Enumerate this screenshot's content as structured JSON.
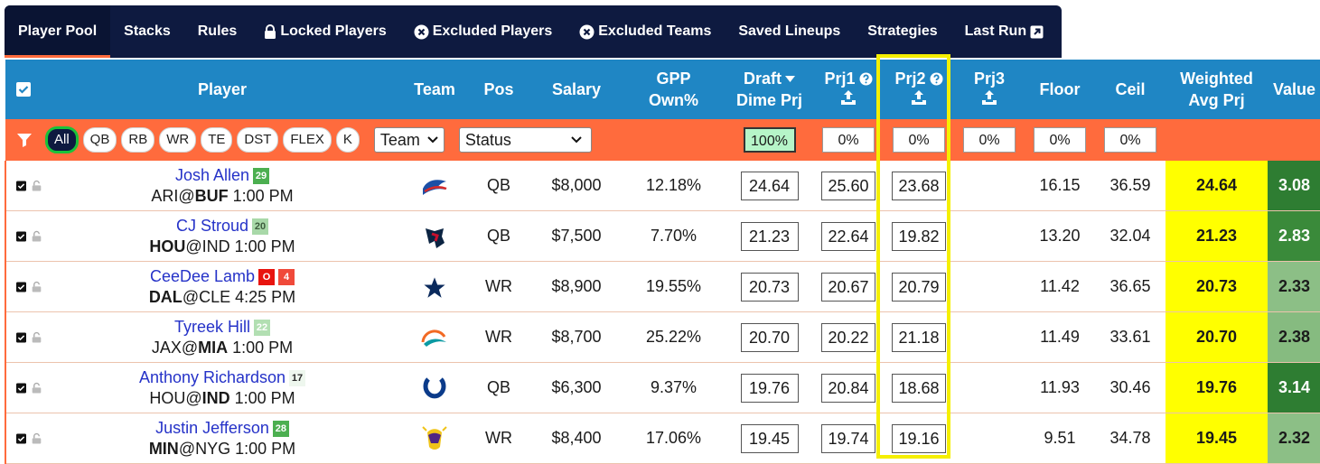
{
  "tabs": [
    "Player Pool",
    "Stacks",
    "Rules",
    "Locked Players",
    "Excluded Players",
    "Excluded Teams",
    "Saved Lineups",
    "Strategies",
    "Last Run"
  ],
  "table": {
    "headers": {
      "player": "Player",
      "team": "Team",
      "pos": "Pos",
      "salary": "Salary",
      "own": "GPP Own%",
      "draft": {
        "line1": "Draft",
        "line2": "Dime Prj"
      },
      "prj1": "Prj1",
      "prj2": "Prj2",
      "prj3": "Prj3",
      "floor": "Floor",
      "ceil": "Ceil",
      "weighted": "Weighted Avg Prj",
      "value": "Value"
    },
    "filters": {
      "positions": [
        "All",
        "QB",
        "RB",
        "WR",
        "TE",
        "DST",
        "FLEX",
        "K"
      ],
      "team_select": "Team",
      "status_select": "Status",
      "draft": "100%",
      "prj1": "0%",
      "prj2": "0%",
      "prj3": "0%",
      "floor": "0%",
      "ceil": "0%"
    },
    "rows": [
      {
        "name": "Josh Allen",
        "badges": [
          {
            "text": "29",
            "bg": "#4caf50",
            "fg": "#ffffff"
          }
        ],
        "away": "ARI",
        "at": "@",
        "home": "BUF",
        "time": "1:00 PM",
        "bold": "home",
        "pos": "QB",
        "salary": "$8,000",
        "own": "12.18%",
        "draft": "24.64",
        "prj1": "25.60",
        "prj2": "23.68",
        "floor": "16.15",
        "ceil": "36.59",
        "weighted": "24.64",
        "value": "3.08",
        "value_bg": "#2e7d32",
        "value_fg": "#ffffff"
      },
      {
        "name": "CJ Stroud",
        "badges": [
          {
            "text": "20",
            "bg": "#a8d8a8",
            "fg": "#3d5c3d"
          }
        ],
        "away": "HOU",
        "at": "@",
        "home": "IND",
        "time": "1:00 PM",
        "bold": "away",
        "pos": "QB",
        "salary": "$7,500",
        "own": "7.70%",
        "draft": "21.23",
        "prj1": "22.64",
        "prj2": "19.82",
        "floor": "13.20",
        "ceil": "32.04",
        "weighted": "21.23",
        "value": "2.83",
        "value_bg": "#3a8a3a",
        "value_fg": "#ffffff"
      },
      {
        "name": "CeeDee Lamb",
        "badges": [
          {
            "text": "O",
            "bg": "#e8140e",
            "fg": "#ffffff"
          },
          {
            "text": "4",
            "bg": "#f04a3a",
            "fg": "#ffffff"
          }
        ],
        "away": "DAL",
        "at": "@",
        "home": "CLE",
        "time": "4:25 PM",
        "bold": "away",
        "pos": "WR",
        "salary": "$8,900",
        "own": "19.55%",
        "draft": "20.73",
        "prj1": "20.67",
        "prj2": "20.79",
        "floor": "11.42",
        "ceil": "36.65",
        "weighted": "20.73",
        "value": "2.33",
        "value_bg": "#8cbf86",
        "value_fg": "#1b1b1b"
      },
      {
        "name": "Tyreek Hill",
        "badges": [
          {
            "text": "22",
            "bg": "#b2dfb2",
            "fg": "#ffffff"
          }
        ],
        "away": "JAX",
        "at": "@",
        "home": "MIA",
        "time": "1:00 PM",
        "bold": "home",
        "pos": "WR",
        "salary": "$8,700",
        "own": "25.22%",
        "draft": "20.70",
        "prj1": "20.22",
        "prj2": "21.18",
        "floor": "11.49",
        "ceil": "33.61",
        "weighted": "20.70",
        "value": "2.38",
        "value_bg": "#86bb80",
        "value_fg": "#1b1b1b"
      },
      {
        "name": "Anthony Richardson",
        "badges": [
          {
            "text": "17",
            "bg": "#eef7ee",
            "fg": "#2a2a2a"
          }
        ],
        "away": "HOU",
        "at": "@",
        "home": "IND",
        "time": "1:00 PM",
        "bold": "home",
        "pos": "QB",
        "salary": "$6,300",
        "own": "9.37%",
        "draft": "19.76",
        "prj1": "20.84",
        "prj2": "18.68",
        "floor": "11.93",
        "ceil": "30.46",
        "weighted": "19.76",
        "value": "3.14",
        "value_bg": "#2e7d32",
        "value_fg": "#ffffff"
      },
      {
        "name": "Justin Jefferson",
        "badges": [
          {
            "text": "28",
            "bg": "#4caf50",
            "fg": "#ffffff"
          }
        ],
        "away": "MIN",
        "at": "@",
        "home": "NYG",
        "time": "1:00 PM",
        "bold": "away",
        "pos": "WR",
        "salary": "$8,400",
        "own": "17.06%",
        "draft": "19.45",
        "prj1": "19.74",
        "prj2": "19.16",
        "floor": "9.51",
        "ceil": "34.78",
        "weighted": "19.45",
        "value": "2.32",
        "value_bg": "#8cbf86",
        "value_fg": "#1b1b1b"
      }
    ]
  }
}
